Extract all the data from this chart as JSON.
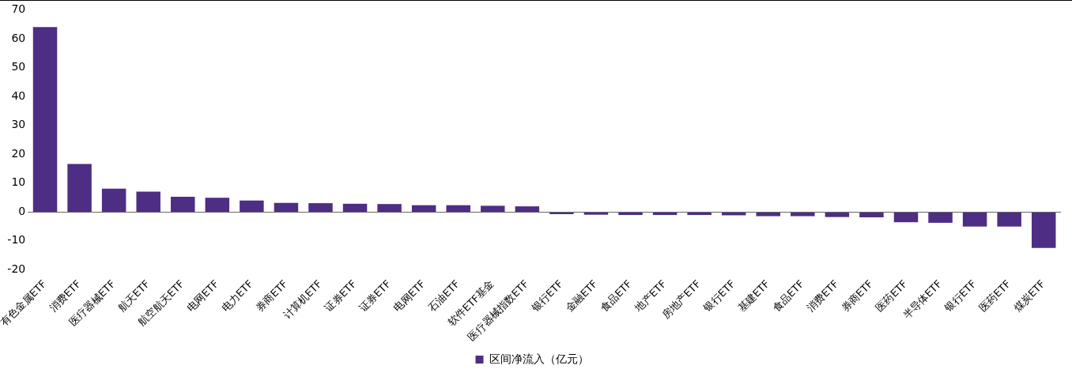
{
  "chart_data": {
    "type": "bar",
    "categories": [
      "有色金属ETF",
      "消费ETF",
      "医疗器械ETF",
      "航天ETF",
      "航空航天ETF",
      "电网ETF",
      "电力ETF",
      "券商ETF",
      "计算机ETF",
      "证券ETF",
      "证券ETF",
      "电网ETF",
      "石油ETF",
      "软件ETF基金",
      "医疗器械指数ETF",
      "银行ETF",
      "金融ETF",
      "食品ETF",
      "地产ETF",
      "房地产ETF",
      "银行ETF",
      "基建ETF",
      "食品ETF",
      "消费ETF",
      "券商ETF",
      "医药ETF",
      "半导体ETF",
      "银行ETF",
      "医药ETF",
      "煤炭ETF"
    ],
    "series": [
      {
        "name": "区间净流入（亿元）",
        "color": "#4e2d84",
        "values": [
          64,
          16.6,
          8.0,
          7.0,
          5.2,
          4.9,
          3.9,
          3.1,
          3.0,
          2.8,
          2.7,
          2.3,
          2.3,
          2.1,
          1.9,
          -0.8,
          -1.0,
          -1.1,
          -1.1,
          -1.1,
          -1.2,
          -1.5,
          -1.5,
          -1.8,
          -1.9,
          -3.6,
          -3.8,
          -5.1,
          -5.1,
          -12.5
        ]
      }
    ],
    "ylim": [
      -20,
      70
    ],
    "yticks": [
      -20,
      -10,
      0,
      10,
      20,
      30,
      40,
      50,
      60,
      70
    ],
    "ref_lines": [
      {
        "axis": "y",
        "value": 0,
        "color": "#666666"
      }
    ],
    "legend": "bottom",
    "grid": false
  }
}
